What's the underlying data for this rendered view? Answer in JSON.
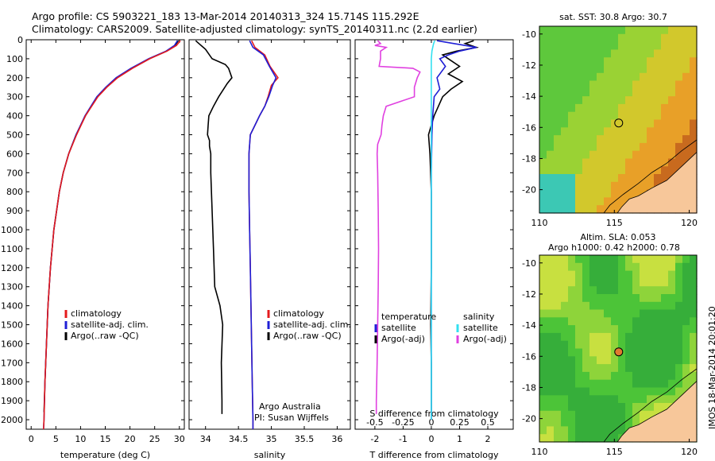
{
  "header": {
    "line1": "Argo profile: CS 5903221_183 13-Mar-2014 20140313_324 15.714S 115.292E",
    "line2": "Climatology: CARS2009. Satellite-adjusted climatology: synTS_20140311.nc (2.2d earlier)"
  },
  "stamp": "IMOS 18-Mar-2014 20:01:20",
  "colors": {
    "climatology": "#e41a1c",
    "satellite": "#1f1fd6",
    "argo": "#000000",
    "salinity_satellite": "#33e0f0",
    "salinity_argo": "#e040e0"
  },
  "chart_data": [
    {
      "type": "line",
      "panel": "temperature",
      "xlabel": "temperature (deg C)",
      "ylim": [
        2050,
        0
      ],
      "xlim": [
        -1,
        31
      ],
      "xticks": [
        0,
        5,
        10,
        15,
        20,
        25,
        30
      ],
      "yticks": [
        0,
        100,
        200,
        300,
        400,
        500,
        600,
        700,
        800,
        900,
        1000,
        1100,
        1200,
        1300,
        1400,
        1500,
        1600,
        1700,
        1800,
        1900,
        2000
      ],
      "legend": [
        "climatology",
        "satellite-adj. clim.",
        "Argo(..raw -QC)"
      ],
      "series": [
        {
          "name": "climatology",
          "depth": [
            5,
            30,
            60,
            100,
            150,
            200,
            250,
            300,
            400,
            500,
            600,
            700,
            800,
            1000,
            1200,
            1400,
            1600,
            1800,
            2000,
            2050
          ],
          "values": [
            30.2,
            29.4,
            27.5,
            24.0,
            20.5,
            17.5,
            15.3,
            13.5,
            11.0,
            9.2,
            7.6,
            6.5,
            5.7,
            4.6,
            3.9,
            3.4,
            3.1,
            2.8,
            2.6,
            2.5
          ]
        },
        {
          "name": "satellite-adj. clim.",
          "depth": [
            5,
            30,
            60,
            100,
            150,
            200,
            250,
            300,
            400,
            500,
            600,
            700,
            800,
            1000,
            1200,
            1400,
            1600,
            1800,
            2000,
            2050
          ],
          "values": [
            29.6,
            29.0,
            27.3,
            23.8,
            20.2,
            17.2,
            15.1,
            13.3,
            10.9,
            9.1,
            7.6,
            6.5,
            5.7,
            4.6,
            3.9,
            3.4,
            3.1,
            2.8,
            2.6,
            2.5
          ]
        },
        {
          "name": "Argo(..raw -QC)",
          "depth": [
            5,
            30,
            60,
            100,
            150,
            200,
            250,
            300,
            400,
            500,
            600,
            700,
            800,
            1000,
            1200,
            1400,
            1600,
            1800,
            1960
          ],
          "values": [
            29.8,
            29.1,
            27.4,
            23.9,
            20.4,
            17.4,
            15.2,
            13.4,
            11.0,
            9.1,
            7.6,
            6.5,
            5.7,
            4.6,
            3.9,
            3.4,
            3.1,
            2.8,
            2.6
          ]
        }
      ]
    },
    {
      "type": "line",
      "panel": "salinity",
      "xlabel": "salinity",
      "ylim": [
        2050,
        0
      ],
      "xlim": [
        33.75,
        36.2
      ],
      "xticks": [
        34,
        34.5,
        35,
        35.5,
        36
      ],
      "legend": [
        "climatology",
        "satellite-adj. clim.",
        "Argo(..raw -QC)"
      ],
      "note": [
        "Argo Australia",
        "PI: Susan Wijffels"
      ],
      "series": [
        {
          "name": "climatology",
          "depth": [
            5,
            40,
            80,
            140,
            200,
            240,
            300,
            350,
            400,
            450,
            500,
            600,
            800,
            1000,
            1200,
            1400,
            1600,
            1800,
            2000,
            2050
          ],
          "values": [
            34.7,
            34.75,
            34.9,
            34.98,
            35.1,
            35.0,
            34.95,
            34.9,
            34.82,
            34.75,
            34.68,
            34.66,
            34.66,
            34.67,
            34.68,
            34.69,
            34.7,
            34.71,
            34.72,
            34.72
          ]
        },
        {
          "name": "satellite-adj. clim.",
          "depth": [
            5,
            40,
            80,
            140,
            200,
            240,
            300,
            350,
            400,
            450,
            500,
            600,
            800,
            1000,
            1200,
            1400,
            1600,
            1800,
            2000,
            2050
          ],
          "values": [
            34.67,
            34.72,
            34.88,
            34.97,
            35.07,
            35.02,
            34.96,
            34.9,
            34.82,
            34.75,
            34.68,
            34.66,
            34.66,
            34.67,
            34.68,
            34.69,
            34.7,
            34.71,
            34.72,
            34.72
          ]
        },
        {
          "name": "Argo(..raw -QC)",
          "depth": [
            5,
            20,
            50,
            100,
            130,
            150,
            200,
            230,
            300,
            350,
            400,
            450,
            500,
            530,
            560,
            600,
            700,
            900,
            1100,
            1300,
            1400,
            1500,
            1700,
            1900,
            1970
          ],
          "values": [
            33.85,
            33.9,
            34.0,
            34.1,
            34.3,
            34.35,
            34.4,
            34.33,
            34.2,
            34.12,
            34.05,
            34.04,
            34.03,
            34.06,
            34.06,
            34.08,
            34.08,
            34.1,
            34.12,
            34.14,
            34.22,
            34.26,
            34.24,
            34.25,
            34.25
          ]
        }
      ]
    },
    {
      "type": "line",
      "panel": "difference",
      "xlabel": "T difference from climatology",
      "xlabel_top": "S difference from climatology",
      "ylim": [
        2050,
        0
      ],
      "xlim": [
        -2.7,
        2.9
      ],
      "xticks_bottom": [
        -2,
        -1,
        0,
        1,
        2
      ],
      "xticks_top_labels": [
        "-0.5",
        "-0.25",
        "0",
        "0.25",
        "0.5"
      ],
      "legend": {
        "temperature": [
          "satellite",
          "Argo(-adj)"
        ],
        "salinity": [
          "satellite",
          "Argo(-adj)"
        ]
      },
      "series": [
        {
          "name": "temperature satellite",
          "depth": [
            5,
            20,
            40,
            60,
            80,
            100,
            140,
            200,
            260,
            300,
            400,
            500,
            700,
            1000,
            1500,
            2000
          ],
          "values": [
            0.2,
            0.8,
            1.6,
            1.0,
            0.6,
            0.3,
            0.5,
            0.2,
            0.3,
            0.1,
            0.05,
            0.02,
            0.0,
            0.0,
            0.0,
            0.0
          ]
        },
        {
          "name": "temperature Argo(-adj)",
          "depth": [
            5,
            20,
            40,
            60,
            80,
            100,
            140,
            180,
            220,
            260,
            300,
            400,
            500,
            600,
            800,
            1000,
            1200,
            1500,
            1700,
            1900,
            1960
          ],
          "values": [
            1.5,
            1.2,
            1.6,
            0.9,
            0.4,
            0.6,
            1.0,
            0.6,
            1.1,
            0.7,
            0.4,
            0.1,
            -0.1,
            -0.05,
            0.0,
            0.0,
            0.0,
            -0.02,
            0.0,
            0.0,
            0.0
          ]
        },
        {
          "name": "salinity satellite",
          "depth": [
            5,
            20,
            40,
            60,
            100,
            150,
            200,
            300,
            400,
            500,
            700,
            1000,
            1500,
            2000
          ],
          "values": [
            0.12,
            0.08,
            0.05,
            0.02,
            0.0,
            0.0,
            0.0,
            0.0,
            0.0,
            0.0,
            0.0,
            0.0,
            0.0,
            0.0
          ]
        },
        {
          "name": "salinity Argo(-adj)",
          "depth": [
            5,
            20,
            30,
            40,
            60,
            100,
            140,
            150,
            170,
            200,
            250,
            300,
            350,
            400,
            450,
            500,
            550,
            600,
            700,
            900,
            1100,
            1300,
            1500,
            1700,
            1900,
            1970
          ],
          "values": [
            -1.9,
            -1.8,
            -2.0,
            -1.6,
            -1.8,
            -1.8,
            -1.85,
            -0.65,
            -0.4,
            -0.5,
            -0.6,
            -0.6,
            -1.6,
            -1.7,
            -1.75,
            -1.78,
            -1.9,
            -1.92,
            -1.9,
            -1.88,
            -1.87,
            -1.88,
            -1.9,
            -1.92,
            -1.95,
            -1.95
          ]
        }
      ]
    },
    {
      "type": "heatmap",
      "panel": "sst-map",
      "title": "sat. SST: 30.8 Argo: 30.7",
      "xticks": [
        110,
        115,
        120
      ],
      "yticks": [
        -10,
        -12,
        -14,
        -16,
        -18,
        -20
      ],
      "xlim": [
        110,
        120.5
      ],
      "ylim": [
        -21.5,
        -9.5
      ],
      "argo_position": {
        "lon": 115.292,
        "lat": -15.714
      }
    },
    {
      "type": "heatmap",
      "panel": "sla-map",
      "title": "Altim. SLA: 0.053",
      "subtitle": "Argo h1000: 0.42 h2000: 0.78",
      "xticks": [
        110,
        115,
        120
      ],
      "yticks": [
        -10,
        -12,
        -14,
        -16,
        -18,
        -20
      ],
      "xlim": [
        110,
        120.5
      ],
      "ylim": [
        -21.5,
        -9.5
      ],
      "argo_position": {
        "lon": 115.292,
        "lat": -15.714
      }
    }
  ]
}
